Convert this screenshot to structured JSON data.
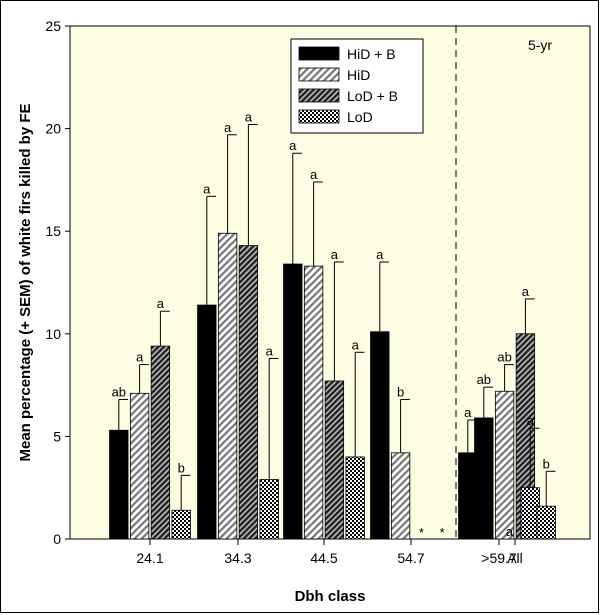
{
  "chart_data": {
    "type": "bar",
    "xlabel": "Dbh class",
    "ylabel": "Mean percentage (+ SEM) of white firs killed by FE",
    "ylim": [
      0,
      25
    ],
    "yticks": [
      0,
      5,
      10,
      15,
      20,
      25
    ],
    "categories": [
      "24.1",
      "34.3",
      "44.5",
      "54.7",
      ">59.7",
      "All"
    ],
    "panel_label": "5-yr",
    "legend_position": "top-center",
    "grid": false,
    "series": [
      {
        "name": "HiD + B",
        "pattern": "solid",
        "values": [
          5.3,
          11.4,
          13.4,
          10.1,
          4.2,
          5.9
        ],
        "errors": [
          1.5,
          5.3,
          5.4,
          3.4,
          1.6,
          1.5
        ],
        "letters": [
          "ab",
          "a",
          "a",
          "a",
          "a",
          "ab"
        ]
      },
      {
        "name": "HiD",
        "pattern": "light-diagonal",
        "values": [
          7.1,
          14.9,
          13.3,
          4.2,
          0,
          7.2
        ],
        "errors": [
          1.4,
          4.8,
          4.1,
          2.6,
          0,
          1.3
        ],
        "letters": [
          "a",
          "a",
          "a",
          "b",
          "a",
          "ab"
        ]
      },
      {
        "name": "LoD + B",
        "pattern": "dark-diagonal",
        "values": [
          9.4,
          14.3,
          7.7,
          0,
          0,
          10.0
        ],
        "errors": [
          1.7,
          5.9,
          5.8,
          0,
          0,
          1.7
        ],
        "letters": [
          "a",
          "a",
          "a",
          "*",
          "a",
          "a"
        ]
      },
      {
        "name": "LoD",
        "pattern": "crosshatch",
        "values": [
          1.4,
          2.9,
          4.0,
          0,
          2.5,
          1.6
        ],
        "errors": [
          1.7,
          5.9,
          5.1,
          0,
          2.9,
          1.7
        ],
        "letters": [
          "b",
          "a",
          "a",
          "*",
          "a",
          "b"
        ]
      }
    ]
  }
}
